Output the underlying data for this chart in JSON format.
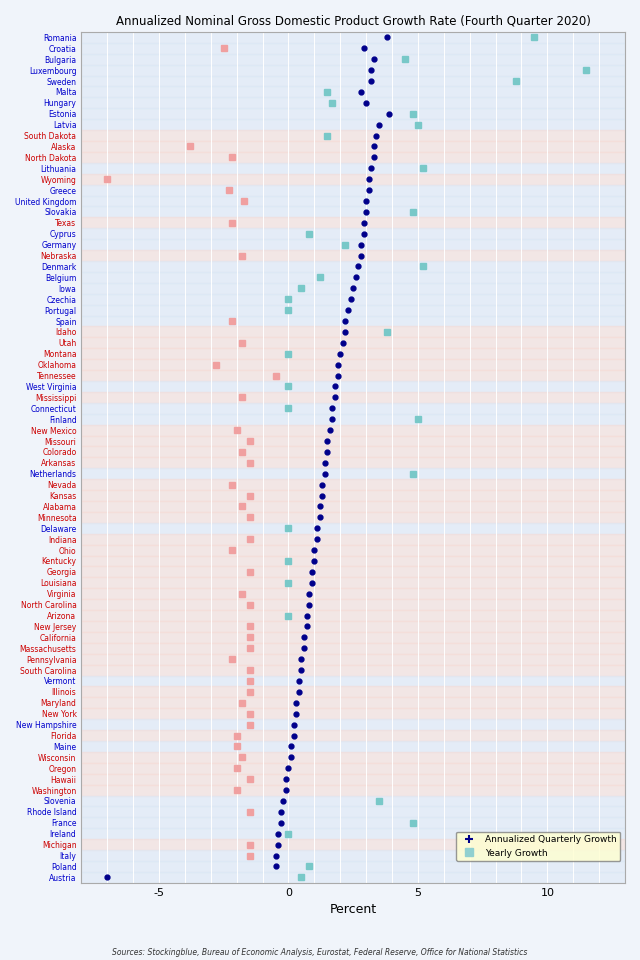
{
  "title": "Annualized Nominal Gross Domestic Product Growth Rate (Fourth Quarter 2020)",
  "xlabel": "Percent",
  "source": "Sources: Stockingblue, Bureau of Economic Analysis, Eurostat, Federal Reserve, Office for National Statistics",
  "xlim": [
    -8,
    13
  ],
  "xticks": [
    -5,
    0,
    5,
    10
  ],
  "entries": [
    {
      "label": "Romania",
      "label_color": "blue",
      "quarterly": 3.8,
      "yearly": 9.5
    },
    {
      "label": "Croatia",
      "label_color": "blue",
      "quarterly": 2.9,
      "yearly": -2.5
    },
    {
      "label": "Bulgaria",
      "label_color": "blue",
      "quarterly": 3.3,
      "yearly": 4.5
    },
    {
      "label": "Luxembourg",
      "label_color": "blue",
      "quarterly": 3.2,
      "yearly": 11.5
    },
    {
      "label": "Sweden",
      "label_color": "blue",
      "quarterly": 3.2,
      "yearly": 8.8
    },
    {
      "label": "Malta",
      "label_color": "blue",
      "quarterly": 2.8,
      "yearly": 1.5
    },
    {
      "label": "Hungary",
      "label_color": "blue",
      "quarterly": 3.0,
      "yearly": 1.7
    },
    {
      "label": "Estonia",
      "label_color": "blue",
      "quarterly": 3.9,
      "yearly": 4.8
    },
    {
      "label": "Latvia",
      "label_color": "blue",
      "quarterly": 3.5,
      "yearly": 5.0
    },
    {
      "label": "South Dakota",
      "label_color": "red",
      "quarterly": 3.4,
      "yearly": 1.5
    },
    {
      "label": "Alaska",
      "label_color": "red",
      "quarterly": 3.3,
      "yearly": -3.8
    },
    {
      "label": "North Dakota",
      "label_color": "red",
      "quarterly": 3.3,
      "yearly": -2.2
    },
    {
      "label": "Lithuania",
      "label_color": "blue",
      "quarterly": 3.2,
      "yearly": 5.2
    },
    {
      "label": "Wyoming",
      "label_color": "red",
      "quarterly": 3.1,
      "yearly": -7.0
    },
    {
      "label": "Greece",
      "label_color": "blue",
      "quarterly": 3.1,
      "yearly": -2.3
    },
    {
      "label": "United Kingdom",
      "label_color": "blue",
      "quarterly": 3.0,
      "yearly": -1.7
    },
    {
      "label": "Slovakia",
      "label_color": "blue",
      "quarterly": 3.0,
      "yearly": 4.8
    },
    {
      "label": "Texas",
      "label_color": "red",
      "quarterly": 2.9,
      "yearly": -2.2
    },
    {
      "label": "Cyprus",
      "label_color": "blue",
      "quarterly": 2.9,
      "yearly": 0.8
    },
    {
      "label": "Germany",
      "label_color": "blue",
      "quarterly": 2.8,
      "yearly": 2.2
    },
    {
      "label": "Nebraska",
      "label_color": "red",
      "quarterly": 2.8,
      "yearly": -1.8
    },
    {
      "label": "Denmark",
      "label_color": "blue",
      "quarterly": 2.7,
      "yearly": 5.2
    },
    {
      "label": "Belgium",
      "label_color": "blue",
      "quarterly": 2.6,
      "yearly": 1.2
    },
    {
      "label": "Iowa",
      "label_color": "blue",
      "quarterly": 2.5,
      "yearly": 0.5
    },
    {
      "label": "Czechia",
      "label_color": "blue",
      "quarterly": 2.4,
      "yearly": 0.0
    },
    {
      "label": "Portugal",
      "label_color": "blue",
      "quarterly": 2.3,
      "yearly": 0.0
    },
    {
      "label": "Spain",
      "label_color": "blue",
      "quarterly": 2.2,
      "yearly": -2.2
    },
    {
      "label": "Idaho",
      "label_color": "red",
      "quarterly": 2.2,
      "yearly": 3.8
    },
    {
      "label": "Utah",
      "label_color": "red",
      "quarterly": 2.1,
      "yearly": -1.8
    },
    {
      "label": "Montana",
      "label_color": "red",
      "quarterly": 2.0,
      "yearly": 0.0
    },
    {
      "label": "Oklahoma",
      "label_color": "red",
      "quarterly": 1.9,
      "yearly": -2.8
    },
    {
      "label": "Tennessee",
      "label_color": "red",
      "quarterly": 1.9,
      "yearly": -0.5
    },
    {
      "label": "West Virginia",
      "label_color": "blue",
      "quarterly": 1.8,
      "yearly": 0.0
    },
    {
      "label": "Mississippi",
      "label_color": "red",
      "quarterly": 1.8,
      "yearly": -1.8
    },
    {
      "label": "Connecticut",
      "label_color": "blue",
      "quarterly": 1.7,
      "yearly": 0.0
    },
    {
      "label": "Finland",
      "label_color": "blue",
      "quarterly": 1.7,
      "yearly": 5.0
    },
    {
      "label": "New Mexico",
      "label_color": "red",
      "quarterly": 1.6,
      "yearly": -2.0
    },
    {
      "label": "Missouri",
      "label_color": "red",
      "quarterly": 1.5,
      "yearly": -1.5
    },
    {
      "label": "Colorado",
      "label_color": "red",
      "quarterly": 1.5,
      "yearly": -1.8
    },
    {
      "label": "Arkansas",
      "label_color": "red",
      "quarterly": 1.4,
      "yearly": -1.5
    },
    {
      "label": "Netherlands",
      "label_color": "blue",
      "quarterly": 1.4,
      "yearly": 4.8
    },
    {
      "label": "Nevada",
      "label_color": "red",
      "quarterly": 1.3,
      "yearly": -2.2
    },
    {
      "label": "Kansas",
      "label_color": "red",
      "quarterly": 1.3,
      "yearly": -1.5
    },
    {
      "label": "Alabama",
      "label_color": "red",
      "quarterly": 1.2,
      "yearly": -1.8
    },
    {
      "label": "Minnesota",
      "label_color": "red",
      "quarterly": 1.2,
      "yearly": -1.5
    },
    {
      "label": "Delaware",
      "label_color": "blue",
      "quarterly": 1.1,
      "yearly": 0.0
    },
    {
      "label": "Indiana",
      "label_color": "red",
      "quarterly": 1.1,
      "yearly": -1.5
    },
    {
      "label": "Ohio",
      "label_color": "red",
      "quarterly": 1.0,
      "yearly": -2.2
    },
    {
      "label": "Kentucky",
      "label_color": "red",
      "quarterly": 1.0,
      "yearly": 0.0
    },
    {
      "label": "Georgia",
      "label_color": "red",
      "quarterly": 0.9,
      "yearly": -1.5
    },
    {
      "label": "Louisiana",
      "label_color": "red",
      "quarterly": 0.9,
      "yearly": 0.0
    },
    {
      "label": "Virginia",
      "label_color": "red",
      "quarterly": 0.8,
      "yearly": -1.8
    },
    {
      "label": "North Carolina",
      "label_color": "red",
      "quarterly": 0.8,
      "yearly": -1.5
    },
    {
      "label": "Arizona",
      "label_color": "red",
      "quarterly": 0.7,
      "yearly": 0.0
    },
    {
      "label": "New Jersey",
      "label_color": "red",
      "quarterly": 0.7,
      "yearly": -1.5
    },
    {
      "label": "California",
      "label_color": "red",
      "quarterly": 0.6,
      "yearly": -1.5
    },
    {
      "label": "Massachusetts",
      "label_color": "red",
      "quarterly": 0.6,
      "yearly": -1.5
    },
    {
      "label": "Pennsylvania",
      "label_color": "red",
      "quarterly": 0.5,
      "yearly": -2.2
    },
    {
      "label": "South Carolina",
      "label_color": "red",
      "quarterly": 0.5,
      "yearly": -1.5
    },
    {
      "label": "Vermont",
      "label_color": "blue",
      "quarterly": 0.4,
      "yearly": -1.5
    },
    {
      "label": "Illinois",
      "label_color": "red",
      "quarterly": 0.4,
      "yearly": -1.5
    },
    {
      "label": "Maryland",
      "label_color": "red",
      "quarterly": 0.3,
      "yearly": -1.8
    },
    {
      "label": "New York",
      "label_color": "red",
      "quarterly": 0.3,
      "yearly": -1.5
    },
    {
      "label": "New Hampshire",
      "label_color": "blue",
      "quarterly": 0.2,
      "yearly": -1.5
    },
    {
      "label": "Florida",
      "label_color": "red",
      "quarterly": 0.2,
      "yearly": -2.0
    },
    {
      "label": "Maine",
      "label_color": "blue",
      "quarterly": 0.1,
      "yearly": -2.0
    },
    {
      "label": "Wisconsin",
      "label_color": "red",
      "quarterly": 0.1,
      "yearly": -1.8
    },
    {
      "label": "Oregon",
      "label_color": "red",
      "quarterly": 0.0,
      "yearly": -2.0
    },
    {
      "label": "Hawaii",
      "label_color": "red",
      "quarterly": -0.1,
      "yearly": -1.5
    },
    {
      "label": "Washington",
      "label_color": "red",
      "quarterly": -0.1,
      "yearly": -2.0
    },
    {
      "label": "Slovenia",
      "label_color": "blue",
      "quarterly": -0.2,
      "yearly": 3.5
    },
    {
      "label": "Rhode Island",
      "label_color": "blue",
      "quarterly": -0.3,
      "yearly": -1.5
    },
    {
      "label": "France",
      "label_color": "blue",
      "quarterly": -0.3,
      "yearly": 4.8
    },
    {
      "label": "Ireland",
      "label_color": "blue",
      "quarterly": -0.4,
      "yearly": 0.0
    },
    {
      "label": "Michigan",
      "label_color": "red",
      "quarterly": -0.4,
      "yearly": -1.5
    },
    {
      "label": "Italy",
      "label_color": "blue",
      "quarterly": -0.5,
      "yearly": -1.5
    },
    {
      "label": "Poland",
      "label_color": "blue",
      "quarterly": -0.5,
      "yearly": 0.8
    },
    {
      "label": "Austria",
      "label_color": "blue",
      "quarterly": -7.0,
      "yearly": 0.5
    }
  ]
}
